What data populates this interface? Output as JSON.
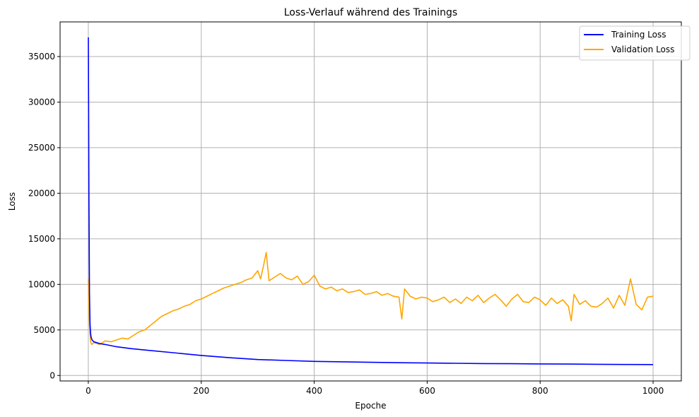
{
  "chart_data": {
    "type": "line",
    "title": "Loss-Verlauf während des Trainings",
    "xlabel": "Epoche",
    "ylabel": "Loss",
    "xlim": [
      -50,
      1050
    ],
    "ylim": [
      -600,
      38800
    ],
    "grid": true,
    "legend_position": "top-right",
    "x_ticks": [
      0,
      200,
      400,
      600,
      800,
      1000
    ],
    "y_ticks": [
      0,
      5000,
      10000,
      15000,
      20000,
      25000,
      30000,
      35000
    ],
    "x_tick_labels": [
      "0",
      "200",
      "400",
      "600",
      "800",
      "1000"
    ],
    "y_tick_labels": [
      "0",
      "5000",
      "10000",
      "15000",
      "20000",
      "25000",
      "30000",
      "35000"
    ],
    "series": [
      {
        "name": "Training Loss",
        "color": "#0000ff",
        "x": [
          0,
          1,
          2,
          3,
          4,
          5,
          6,
          8,
          10,
          15,
          20,
          30,
          50,
          75,
          100,
          150,
          200,
          250,
          300,
          350,
          400,
          450,
          500,
          550,
          600,
          650,
          700,
          750,
          800,
          850,
          900,
          950,
          1000
        ],
        "y": [
          37100,
          20000,
          9000,
          5600,
          4600,
          4200,
          4000,
          3800,
          3700,
          3600,
          3500,
          3400,
          3150,
          2950,
          2800,
          2500,
          2200,
          1950,
          1750,
          1650,
          1550,
          1500,
          1450,
          1400,
          1370,
          1340,
          1310,
          1290,
          1270,
          1250,
          1230,
          1210,
          1200
        ]
      },
      {
        "name": "Validation Loss",
        "color": "#ffa500",
        "x": [
          0,
          2,
          4,
          6,
          10,
          15,
          20,
          25,
          30,
          40,
          50,
          60,
          70,
          80,
          90,
          100,
          110,
          120,
          130,
          140,
          150,
          160,
          170,
          180,
          190,
          200,
          210,
          220,
          230,
          240,
          250,
          260,
          270,
          280,
          290,
          300,
          305,
          310,
          315,
          320,
          330,
          340,
          350,
          360,
          370,
          380,
          390,
          400,
          410,
          420,
          430,
          440,
          450,
          460,
          470,
          480,
          490,
          500,
          510,
          520,
          530,
          540,
          550,
          555,
          560,
          570,
          580,
          590,
          600,
          610,
          620,
          630,
          640,
          650,
          660,
          670,
          680,
          690,
          700,
          710,
          720,
          730,
          740,
          750,
          760,
          770,
          780,
          790,
          800,
          810,
          820,
          830,
          840,
          850,
          855,
          860,
          870,
          880,
          890,
          900,
          910,
          920,
          930,
          940,
          950,
          960,
          970,
          980,
          990,
          1000
        ],
        "y": [
          10600,
          5500,
          3700,
          3400,
          3600,
          3500,
          3400,
          3600,
          3800,
          3700,
          3900,
          4100,
          4000,
          4400,
          4800,
          5000,
          5500,
          6000,
          6500,
          6800,
          7100,
          7300,
          7600,
          7800,
          8200,
          8400,
          8700,
          9000,
          9300,
          9600,
          9800,
          10000,
          10200,
          10500,
          10700,
          11500,
          10600,
          12000,
          13500,
          10400,
          10800,
          11200,
          10700,
          10500,
          10900,
          10000,
          10300,
          11000,
          9800,
          9500,
          9700,
          9300,
          9500,
          9100,
          9200,
          9400,
          8900,
          9000,
          9200,
          8800,
          9000,
          8700,
          8600,
          6200,
          9500,
          8700,
          8400,
          8600,
          8500,
          8100,
          8300,
          8600,
          8000,
          8400,
          7900,
          8600,
          8200,
          8800,
          8000,
          8500,
          8900,
          8300,
          7600,
          8400,
          8900,
          8100,
          8000,
          8600,
          8300,
          7700,
          8500,
          7900,
          8300,
          7600,
          6000,
          8900,
          7800,
          8200,
          7600,
          7500,
          7900,
          8500,
          7400,
          8800,
          7700,
          10600,
          7800,
          7200,
          8600,
          8700
        ]
      }
    ]
  }
}
